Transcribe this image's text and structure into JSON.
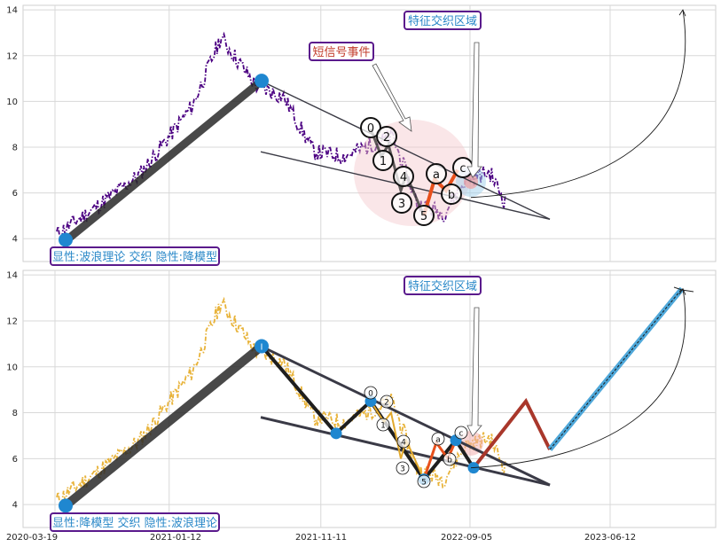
{
  "colors": {
    "top_series": "#4b0082",
    "bottom_series": "#e8b33a",
    "label_border": "#5a1a8c",
    "label_text_blue": "#2a88c8",
    "label_text_red": "#c23b2a",
    "wave_dark": "#2b2b33",
    "wave_orange": "#e8501c",
    "node_blue": "#1f87d0",
    "zone_pink": "#f3c8cc",
    "pattern_brown": "#a9372b",
    "pattern_blue": "#4fa8da"
  },
  "chart_data": [
    {
      "type": "line",
      "panel": "top",
      "title": "",
      "xlabel": "",
      "ylabel": "",
      "ylim": [
        3,
        14.2
      ],
      "yticks": [
        "4",
        "6",
        "8",
        "10",
        "12",
        "14"
      ],
      "grid": true,
      "series": [
        {
          "style": "dash-dot",
          "x": [
            "2020-03-19",
            "2020-06-01",
            "2020-09-01",
            "2020-12-15",
            "2021-02-10",
            "2021-04-20",
            "2021-06-15",
            "2021-08-15",
            "2021-10-15",
            "2022-01-18",
            "2022-03-10",
            "2022-05-01",
            "2022-06-15",
            "2022-08-01",
            "2022-09-01"
          ],
          "y": [
            4.2,
            5.3,
            6.8,
            9.8,
            12.8,
            10.7,
            10.2,
            7.8,
            7.6,
            8.5,
            5.5,
            5.1,
            6.6,
            6.9,
            5.6
          ]
        }
      ],
      "wave_points": {
        "x": [
          "2020-04-08",
          "2021-05-08"
        ],
        "y": [
          3.9,
          10.9
        ]
      },
      "wave_labels": [
        {
          "label": "0",
          "x": "2022-01-20",
          "y": 8.8
        },
        {
          "label": "2",
          "x": "2022-02-05",
          "y": 8.2
        },
        {
          "label": "1",
          "x": "2022-02-10",
          "y": 7.4
        },
        {
          "label": "4",
          "x": "2022-03-12",
          "y": 6.6
        },
        {
          "label": "3",
          "x": "2022-03-10",
          "y": 5.5
        },
        {
          "label": "5",
          "x": "2022-05-10",
          "y": 5.0
        },
        {
          "label": "a",
          "x": "2022-06-25",
          "y": 6.8
        },
        {
          "label": "b",
          "x": "2022-08-05",
          "y": 6.0
        },
        {
          "label": "c",
          "x": "2022-08-20",
          "y": 7.1
        }
      ],
      "annotations": {
        "zone_label": "特征交织区域",
        "event_label": "短信号事件",
        "corner_label": "显性:波浪理论 交织 隐性:降模型"
      }
    },
    {
      "type": "line",
      "panel": "bottom",
      "title": "",
      "xlabel": "",
      "ylabel": "",
      "ylim": [
        3,
        14.2
      ],
      "yticks": [
        "4",
        "6",
        "8",
        "10",
        "12",
        "14"
      ],
      "xticks": [
        "2020-03-19",
        "2021-01-12",
        "2021-11-11",
        "2022-09-05",
        "2023-06-12"
      ],
      "grid": true,
      "series": [
        {
          "style": "dash-dot",
          "x": [
            "2020-03-19",
            "2020-06-01",
            "2020-09-01",
            "2020-12-15",
            "2021-02-10",
            "2021-04-20",
            "2021-06-15",
            "2021-08-15",
            "2021-10-15",
            "2022-01-18",
            "2022-03-10",
            "2022-05-01",
            "2022-06-15",
            "2022-08-01",
            "2022-09-01"
          ],
          "y": [
            4.2,
            5.3,
            6.8,
            9.8,
            12.8,
            10.7,
            10.2,
            7.8,
            7.6,
            8.5,
            5.5,
            5.1,
            6.6,
            6.9,
            5.6
          ]
        }
      ],
      "wave_points": {
        "x": [
          "2020-04-08",
          "2021-05-08",
          "2021-10-25",
          "2022-01-20",
          "2022-05-10",
          "2022-08-05",
          "2022-09-01"
        ],
        "y": [
          3.95,
          10.9,
          7.1,
          8.5,
          5.1,
          6.8,
          5.6
        ]
      },
      "pattern_points": {
        "x": [
          "2022-09-01",
          "2023-01-01",
          "2023-03-10",
          "2024-02-20"
        ],
        "y": [
          5.6,
          8.5,
          6.4,
          13.4
        ]
      },
      "wave_labels": [
        {
          "label": "0",
          "x": "2022-01-20",
          "y": 8.8
        },
        {
          "label": "2",
          "x": "2022-02-05",
          "y": 8.2
        },
        {
          "label": "1",
          "x": "2022-02-10",
          "y": 7.4
        },
        {
          "label": "4",
          "x": "2022-03-12",
          "y": 6.6
        },
        {
          "label": "3",
          "x": "2022-03-10",
          "y": 5.5
        },
        {
          "label": "5",
          "x": "2022-05-10",
          "y": 5.0
        },
        {
          "label": "a",
          "x": "2022-06-25",
          "y": 6.8
        },
        {
          "label": "b",
          "x": "2022-08-05",
          "y": 6.0
        },
        {
          "label": "c",
          "x": "2022-08-20",
          "y": 7.1
        }
      ],
      "annotations": {
        "zone_label": "特征交织区域",
        "corner_label": "显性:降模型 交织 隐性:波浪理论"
      }
    }
  ]
}
